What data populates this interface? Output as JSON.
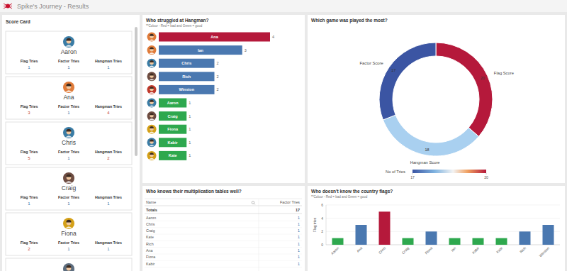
{
  "header": {
    "title": "Spike's Journey - Results"
  },
  "score_card": {
    "title": "Score Card",
    "fields": [
      "Flag Tries",
      "Factor Tries",
      "Hangman Tries"
    ],
    "cards": [
      {
        "name": "Aaron",
        "values": [
          1,
          1,
          1
        ]
      },
      {
        "name": "Ana",
        "values": [
          3,
          1,
          4
        ]
      },
      {
        "name": "Chris",
        "values": [
          5,
          1,
          2
        ]
      },
      {
        "name": "Craig",
        "values": [
          1,
          1,
          1
        ]
      },
      {
        "name": "Fiona",
        "values": [
          2,
          1,
          1
        ]
      }
    ]
  },
  "table": {
    "title": "Who knows their multiplication tables well?",
    "columns": [
      "Name",
      "Factor Tries"
    ],
    "totals": [
      "Totals",
      17
    ],
    "rows": [
      [
        "Aaron",
        1
      ],
      [
        "Chris",
        1
      ],
      [
        "Craig",
        1
      ],
      [
        "Kate",
        1
      ],
      [
        "Rich",
        1
      ],
      [
        "Ana",
        1
      ],
      [
        "Fiona",
        1
      ],
      [
        "Kabir",
        1
      ]
    ]
  },
  "chart_data": [
    {
      "type": "bar",
      "title": "Who struggled at Hangman?",
      "subtitle": "**Colour - Red = bad and Green = good",
      "orientation": "horizontal",
      "categories": [
        "Ana",
        "Ian",
        "Chris",
        "Rich",
        "Winston",
        "Aaron",
        "Craig",
        "Fiona",
        "Kabir",
        "Kate"
      ],
      "values": [
        4,
        3,
        2,
        2,
        2,
        1,
        1,
        1,
        1,
        1
      ],
      "colors": [
        "#b5193b",
        "#4a78b0",
        "#4a78b0",
        "#4a78b0",
        "#4a78b0",
        "#2ea84e",
        "#2ea84e",
        "#2ea84e",
        "#2ea84e",
        "#2ea84e"
      ],
      "xlim": [
        0,
        4
      ],
      "data_labels": true
    },
    {
      "type": "donut",
      "title": "Which game was played the most?",
      "categories": [
        "Flag Score",
        "Hangman Score",
        "Factor Score"
      ],
      "values": [
        20,
        18,
        17
      ],
      "colors": [
        "#b5193b",
        "#a9d0f0",
        "#3b55a3"
      ],
      "data_labels": true,
      "colorbar_label": "No of Tries",
      "colorbar_range": [
        17,
        20
      ],
      "colorbar_ticks": [
        17,
        20
      ]
    },
    {
      "type": "bar",
      "title": "Who doesn't know the country flags?",
      "subtitle": "**Colour - Red = bad and Green = good",
      "categories": [
        "Aaron",
        "Ana",
        "Chris",
        "Craig",
        "Fiona",
        "Ian",
        "Kabir",
        "Kate",
        "Rich",
        "Winston"
      ],
      "values": [
        1,
        3,
        5,
        1,
        2,
        1,
        1,
        1,
        2,
        3
      ],
      "colors": [
        "#2ea84e",
        "#4a78b0",
        "#b5193b",
        "#2ea84e",
        "#4a78b0",
        "#2ea84e",
        "#2ea84e",
        "#2ea84e",
        "#4a78b0",
        "#4a78b0"
      ],
      "ylabel": "Flag tries",
      "ylim": [
        0,
        6
      ],
      "yticks": [
        0,
        2,
        4,
        6
      ],
      "grid": true
    }
  ]
}
